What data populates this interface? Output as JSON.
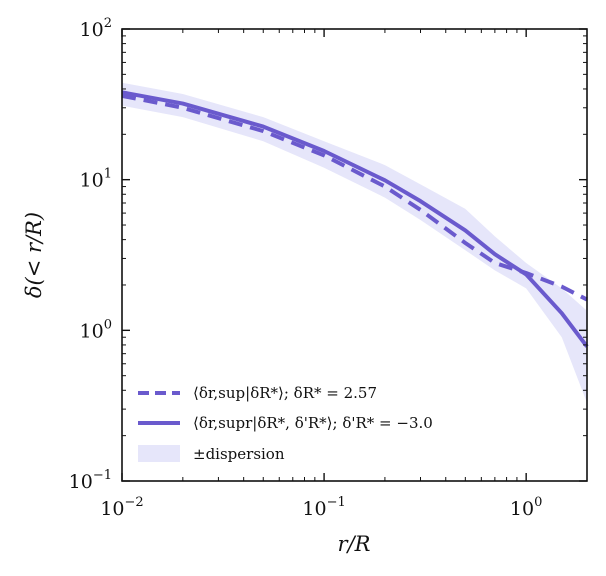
{
  "chart_data": {
    "type": "line",
    "title": "",
    "xlabel": "r/R",
    "ylabel": "δ(< r/R)",
    "xscale": "log",
    "yscale": "log",
    "xlim": [
      0.01,
      2
    ],
    "ylim": [
      0.1,
      100
    ],
    "grid": false,
    "legend_position": "lower-left",
    "x_ticks": [
      {
        "value": 0.01,
        "base": "10",
        "exp": "−2"
      },
      {
        "value": 0.1,
        "base": "10",
        "exp": "−1"
      },
      {
        "value": 1,
        "base": "10",
        "exp": "0"
      }
    ],
    "y_ticks": [
      {
        "value": 0.1,
        "base": "10",
        "exp": "−1"
      },
      {
        "value": 1,
        "base": "10",
        "exp": "0"
      },
      {
        "value": 10,
        "base": "10",
        "exp": "1"
      },
      {
        "value": 100,
        "base": "10",
        "exp": "2"
      }
    ],
    "color": "#6a5acd",
    "band_color": "#e6e6fa",
    "series": [
      {
        "name": "⟨δr,sup|δR*⟩;   δR* = 2.57",
        "style": "dashed",
        "x": [
          0.01,
          0.02,
          0.05,
          0.1,
          0.2,
          0.3,
          0.5,
          0.7,
          1.0,
          1.5,
          2.0
        ],
        "y": [
          36,
          30,
          21,
          14.5,
          9,
          6.3,
          3.8,
          2.8,
          2.4,
          1.95,
          1.6
        ]
      },
      {
        "name": "⟨δr,supr|δR*, δ'R*⟩;   δ'R* = −3.0",
        "style": "solid",
        "x": [
          0.01,
          0.02,
          0.05,
          0.1,
          0.2,
          0.3,
          0.5,
          0.7,
          1.0,
          1.5,
          2.0
        ],
        "y": [
          38,
          32,
          22.5,
          15.5,
          9.9,
          7.2,
          4.6,
          3.2,
          2.35,
          1.3,
          0.78
        ]
      }
    ],
    "band": {
      "name": "±dispersion",
      "x": [
        0.01,
        0.02,
        0.05,
        0.1,
        0.2,
        0.3,
        0.5,
        0.7,
        1.0,
        1.5,
        2.0
      ],
      "lower": [
        31,
        26,
        18,
        12,
        7.6,
        5.4,
        3.4,
        2.5,
        1.9,
        0.9,
        0.33
      ],
      "upper": [
        44,
        37,
        26,
        18,
        12.5,
        9.3,
        6.4,
        4.2,
        2.8,
        1.9,
        1.35
      ]
    }
  }
}
